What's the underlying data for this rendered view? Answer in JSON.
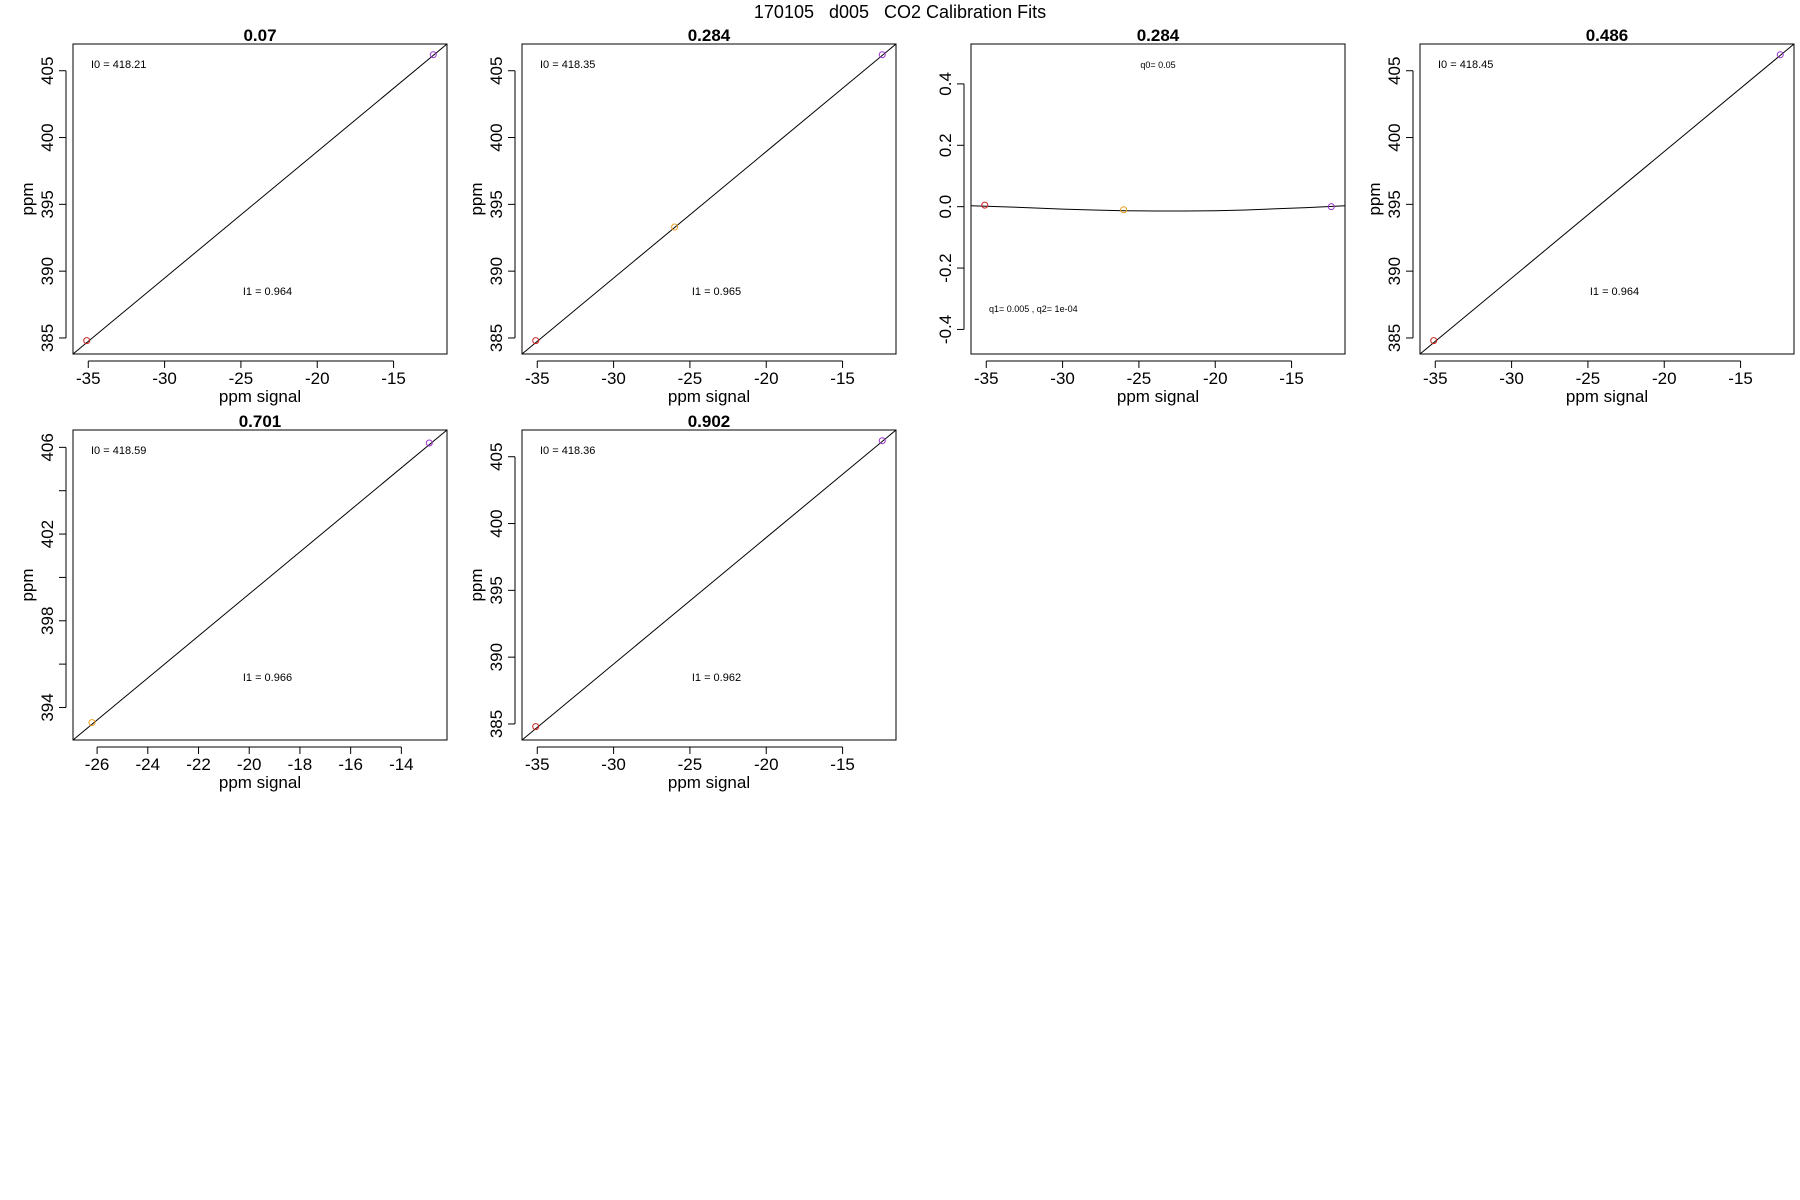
{
  "title": "170105   d005   CO2 Calibration Fits",
  "chart_data": [
    {
      "type": "scatter",
      "title": "0.07",
      "xlabel": "ppm signal",
      "ylabel": "ppm",
      "xlim": [
        -36,
        -11.5
      ],
      "ylim": [
        383.8,
        407
      ],
      "xticks": [
        -35,
        -30,
        -25,
        -20,
        -15
      ],
      "yticks": [
        385,
        390,
        395,
        400,
        405
      ],
      "fit": {
        "type": "line",
        "x": [
          -36,
          -11.5
        ],
        "y": [
          383.8,
          407
        ]
      },
      "points": [
        {
          "x": -35.1,
          "y": 384.8,
          "color": "#cc2222"
        },
        {
          "x": -12.4,
          "y": 406.2,
          "color": "#9933cc"
        }
      ],
      "annotations": {
        "top": "I0 =  418.21",
        "bottom": "I1 =  0.964"
      }
    },
    {
      "type": "scatter",
      "title": "0.284",
      "xlabel": "ppm signal",
      "ylabel": "ppm",
      "xlim": [
        -36,
        -11.5
      ],
      "ylim": [
        383.8,
        407
      ],
      "xticks": [
        -35,
        -30,
        -25,
        -20,
        -15
      ],
      "yticks": [
        385,
        390,
        395,
        400,
        405
      ],
      "fit": {
        "type": "line",
        "x": [
          -36,
          -11.5
        ],
        "y": [
          383.8,
          407
        ]
      },
      "points": [
        {
          "x": -35.1,
          "y": 384.8,
          "color": "#cc2222"
        },
        {
          "x": -26.0,
          "y": 393.3,
          "color": "#e8a020"
        },
        {
          "x": -12.4,
          "y": 406.2,
          "color": "#9933cc"
        }
      ],
      "annotations": {
        "top": "I0 =  418.35",
        "bottom": "I1 =  0.965"
      }
    },
    {
      "type": "scatter",
      "title": "0.284",
      "xlabel": "ppm signal",
      "ylabel": "",
      "xlim": [
        -36,
        -11.5
      ],
      "ylim": [
        -0.48,
        0.53
      ],
      "xticks": [
        -35,
        -30,
        -25,
        -20,
        -15
      ],
      "yticks": [
        -0.4,
        -0.2,
        0.0,
        0.2,
        0.4
      ],
      "fit": {
        "type": "curve",
        "x": [
          -36,
          -34,
          -32,
          -30,
          -28,
          -26,
          -24,
          -22,
          -20,
          -18,
          -16,
          -14,
          -12,
          -11.5
        ],
        "y": [
          0.003,
          0.0,
          -0.004,
          -0.008,
          -0.011,
          -0.013,
          -0.014,
          -0.014,
          -0.013,
          -0.011,
          -0.007,
          -0.003,
          0.002,
          0.003
        ]
      },
      "points": [
        {
          "x": -35.1,
          "y": 0.005,
          "color": "#cc2222"
        },
        {
          "x": -26.0,
          "y": -0.01,
          "color": "#e8a020"
        },
        {
          "x": -12.4,
          "y": 0.0,
          "color": "#9933cc"
        }
      ],
      "annotations": {
        "top": "q0= 0.05",
        "bottom": "q1= 0.005 , q2= 1e-04"
      }
    },
    {
      "type": "scatter",
      "title": "0.486",
      "xlabel": "ppm signal",
      "ylabel": "ppm",
      "xlim": [
        -36,
        -11.5
      ],
      "ylim": [
        383.8,
        407
      ],
      "xticks": [
        -35,
        -30,
        -25,
        -20,
        -15
      ],
      "yticks": [
        385,
        390,
        395,
        400,
        405
      ],
      "fit": {
        "type": "line",
        "x": [
          -36,
          -11.5
        ],
        "y": [
          383.8,
          407
        ]
      },
      "points": [
        {
          "x": -35.1,
          "y": 384.8,
          "color": "#cc2222"
        },
        {
          "x": -12.4,
          "y": 406.2,
          "color": "#9933cc"
        }
      ],
      "annotations": {
        "top": "I0 =  418.45",
        "bottom": "I1 =  0.964"
      }
    },
    {
      "type": "scatter",
      "title": "0.701",
      "xlabel": "ppm signal",
      "ylabel": "ppm",
      "xlim": [
        -26.95,
        -12.2
      ],
      "ylim": [
        392.5,
        406.8
      ],
      "xticks": [
        -26,
        -24,
        -22,
        -20,
        -18,
        -16,
        -14
      ],
      "yticks": [
        394,
        396,
        398,
        400,
        402,
        404,
        406
      ],
      "ytickLabels": [
        "394",
        "",
        "398",
        "",
        "402",
        "",
        "406"
      ],
      "fit": {
        "type": "line",
        "x": [
          -26.95,
          -12.2
        ],
        "y": [
          392.5,
          406.8
        ]
      },
      "points": [
        {
          "x": -26.2,
          "y": 393.3,
          "color": "#e8a020"
        },
        {
          "x": -12.9,
          "y": 406.2,
          "color": "#9933cc"
        }
      ],
      "annotations": {
        "top": "I0 =  418.59",
        "bottom": "I1 =  0.966"
      }
    },
    {
      "type": "scatter",
      "title": "0.902",
      "xlabel": "ppm signal",
      "ylabel": "ppm",
      "xlim": [
        -36,
        -11.5
      ],
      "ylim": [
        383.8,
        407
      ],
      "xticks": [
        -35,
        -30,
        -25,
        -20,
        -15
      ],
      "yticks": [
        385,
        390,
        395,
        400,
        405
      ],
      "fit": {
        "type": "line",
        "x": [
          -36,
          -11.5
        ],
        "y": [
          383.8,
          407
        ]
      },
      "points": [
        {
          "x": -35.1,
          "y": 384.8,
          "color": "#cc2222"
        },
        {
          "x": -12.4,
          "y": 406.2,
          "color": "#9933cc"
        }
      ],
      "annotations": {
        "top": "I0 =  418.36",
        "bottom": "I1 =  0.962"
      }
    }
  ]
}
